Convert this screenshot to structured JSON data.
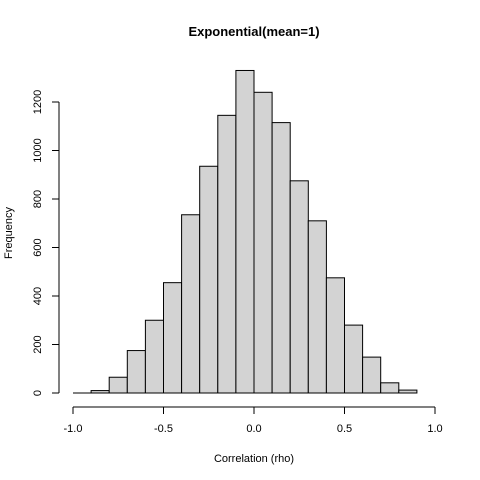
{
  "chart_data": {
    "type": "bar",
    "title": "Exponential(mean=1)",
    "xlabel": "Correlation (rho)",
    "ylabel": "Frequency",
    "xlim": [
      -1.0,
      1.0
    ],
    "ylim": [
      0,
      1300
    ],
    "x_ticks": [
      "-1.0",
      "-0.5",
      "0.0",
      "0.5",
      "1.0"
    ],
    "y_ticks": [
      "0",
      "200",
      "400",
      "600",
      "800",
      "1000",
      "1200"
    ],
    "bin_edges": [
      -1.0,
      -0.9,
      -0.8,
      -0.7,
      -0.6,
      -0.5,
      -0.4,
      -0.3,
      -0.2,
      -0.1,
      0.0,
      0.1,
      0.2,
      0.3,
      0.4,
      0.5,
      0.6,
      0.7,
      0.8,
      0.9
    ],
    "values": [
      0,
      10,
      65,
      175,
      300,
      455,
      735,
      935,
      1145,
      1330,
      1240,
      1115,
      875,
      710,
      475,
      280,
      148,
      42,
      12
    ],
    "bar_fill": "#d3d3d3",
    "bar_stroke": "#000000",
    "grid": false
  }
}
